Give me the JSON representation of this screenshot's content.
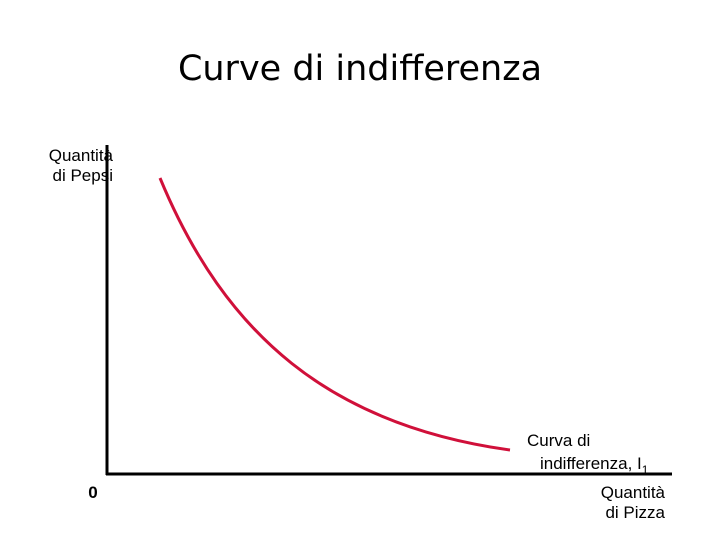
{
  "title": "Curve di indifferenza",
  "y_axis": {
    "label_lines": [
      "Quantità",
      "di Pepsi"
    ]
  },
  "x_axis": {
    "label_lines": [
      "Quantità",
      "di Pizza"
    ]
  },
  "origin": "0",
  "curve": {
    "label_lines": [
      "Curva di",
      "indifferenza, I"
    ],
    "subscript": "1"
  }
}
